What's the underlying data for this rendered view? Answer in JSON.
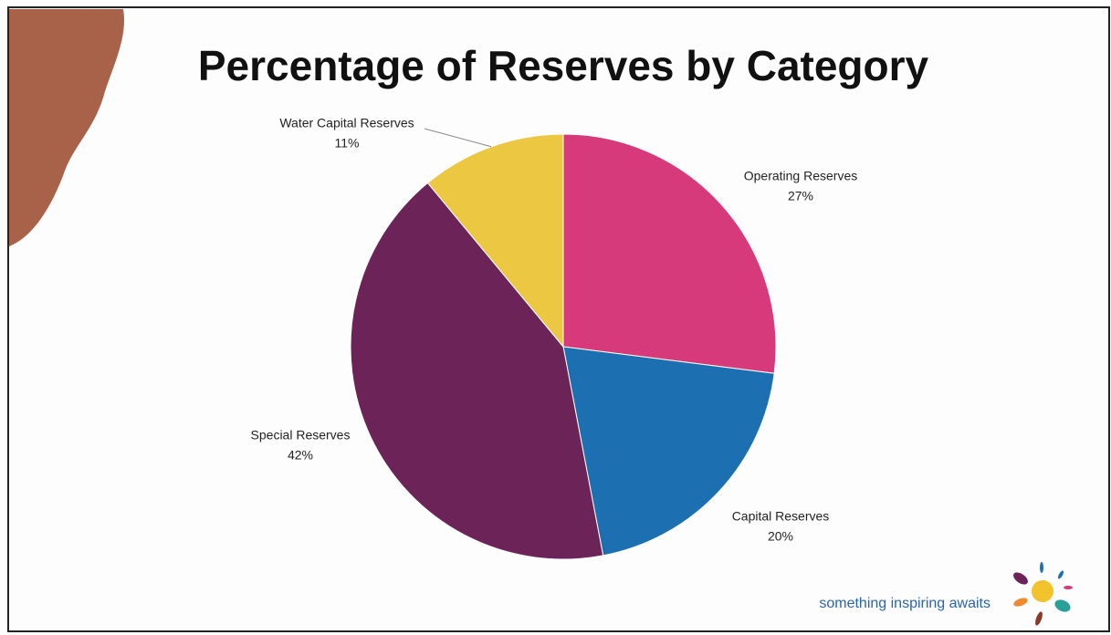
{
  "chart_data": {
    "type": "pie",
    "title": "Percentage of Reserves by Category",
    "categories": [
      "Operating Reserves",
      "Capital Reserves",
      "Special Reserves",
      "Water Capital Reserves"
    ],
    "values": [
      27,
      20,
      42,
      11
    ],
    "value_labels": [
      "27%",
      "20%",
      "42%",
      "11%"
    ],
    "colors": [
      "#d63a7a",
      "#1c70b2",
      "#6c2458",
      "#ecc842"
    ]
  },
  "footer": {
    "tagline": "something inspiring awaits"
  }
}
